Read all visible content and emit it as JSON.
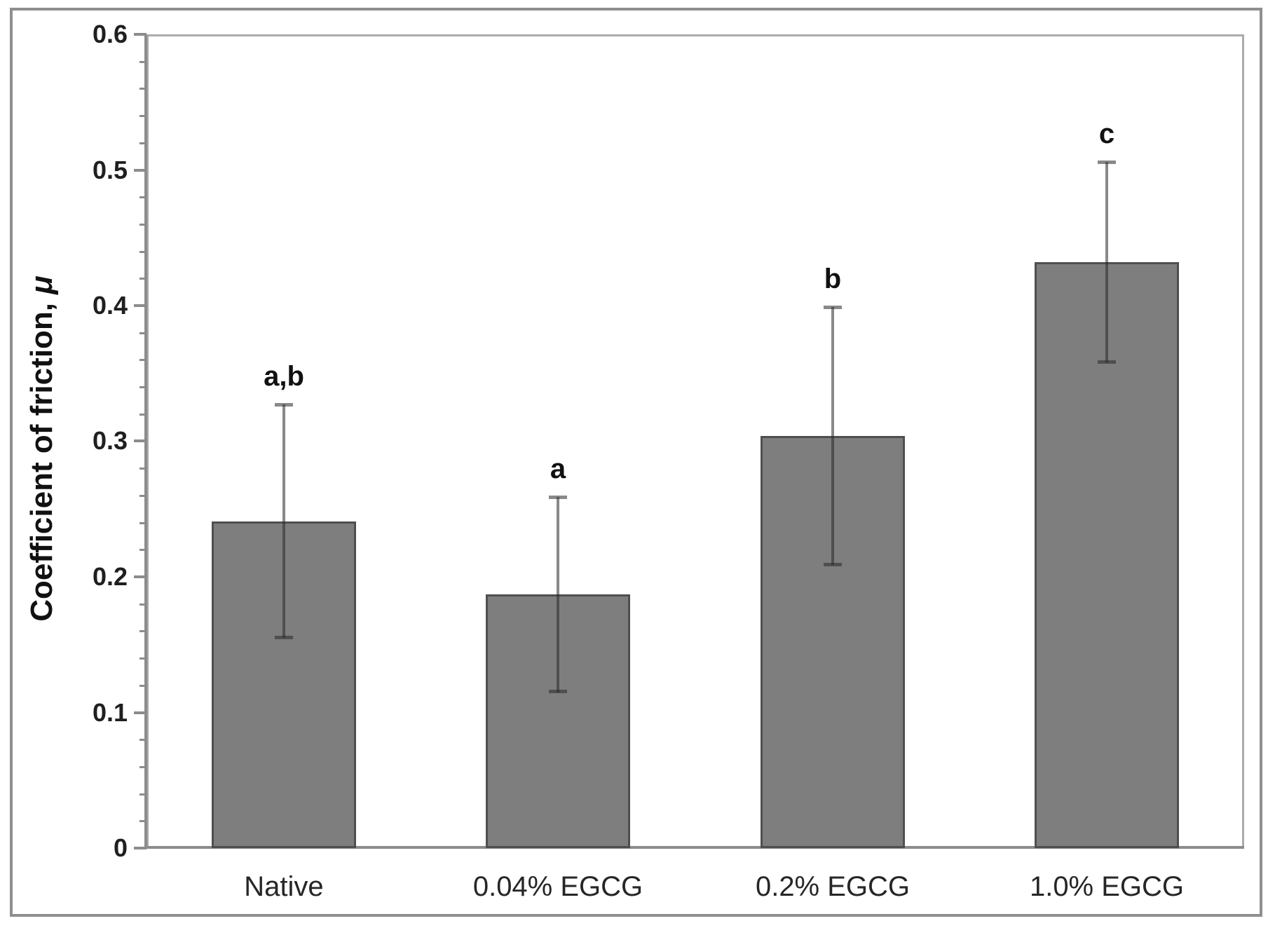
{
  "chart_data": {
    "type": "bar",
    "title": "",
    "xlabel": "",
    "ylabel": "Coefficient of friction, μ",
    "ylabel_text": "Coefficient of friction, ",
    "ylabel_symbol": "μ",
    "categories": [
      "Native",
      "0.04% EGCG",
      "0.2% EGCG",
      "1.0% EGCG"
    ],
    "values": [
      0.241,
      0.187,
      0.304,
      0.432
    ],
    "errors_plus": [
      0.086,
      0.072,
      0.095,
      0.074
    ],
    "errors_minus": [
      0.086,
      0.072,
      0.095,
      0.074
    ],
    "sig_labels": [
      "a,b",
      "a",
      "b",
      "c"
    ],
    "ylim": [
      0,
      0.6
    ],
    "ytick_labels": [
      "0",
      "0.1",
      "0.2",
      "0.3",
      "0.4",
      "0.5",
      "0.6"
    ],
    "ytick_major_step": 0.1,
    "ytick_minor_step": 0.02,
    "grid": false,
    "legend": false,
    "colors": {
      "bar_fill": "#7e7e7e",
      "bar_border": "#4f4f4f",
      "axis": "#8c8c8c",
      "plot_border": "#ababab",
      "error_bar": "rgba(40,40,40,0.55)",
      "text": "#1f1f1f",
      "frame": "#8f8f8f"
    }
  }
}
